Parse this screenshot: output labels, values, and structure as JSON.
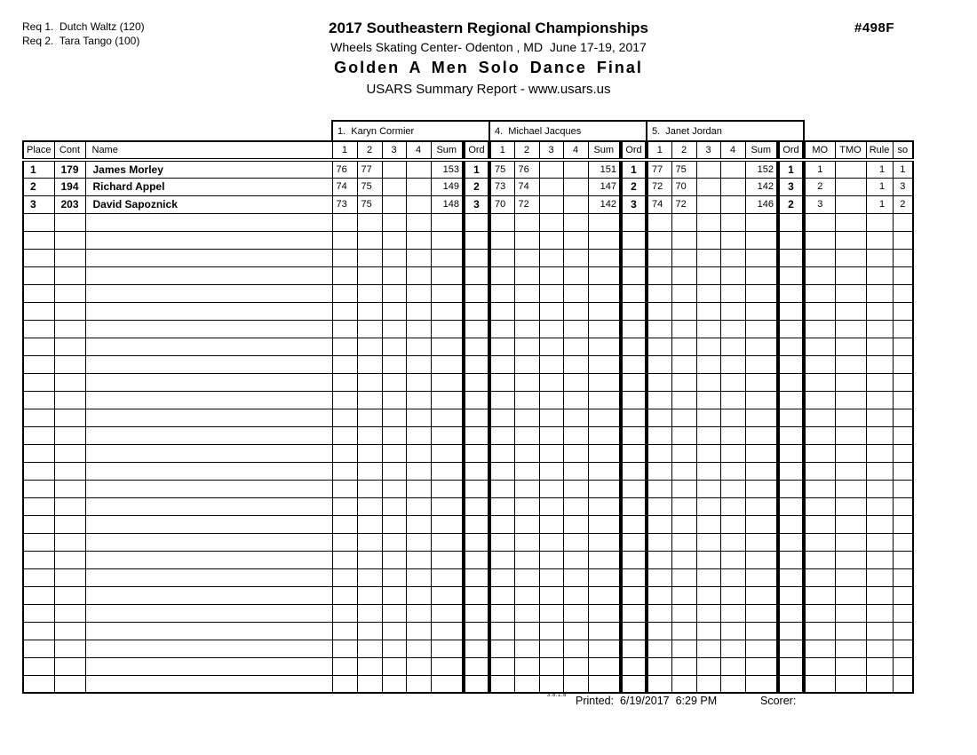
{
  "header": {
    "req_lines": [
      "Req 1.  Dutch Waltz (120)",
      "Req 2.  Tara Tango (100)"
    ],
    "title": "2017 Southeastern Regional Championships",
    "venue": "Wheels Skating Center- Odenton , MD  June 17-19, 2017",
    "event_name": "Golden A Men Solo Dance Final",
    "report_type": "USARS Summary Report - www.usars.us",
    "event_number": "#498F"
  },
  "table": {
    "left_headers": [
      "Place",
      "Cont",
      "Name"
    ],
    "judge_sub_headers": [
      "1",
      "2",
      "3",
      "4",
      "Sum",
      "Ord"
    ],
    "right_headers": [
      "MO",
      "TMO",
      "Rule",
      "so"
    ],
    "judges": [
      "1.  Karyn Cormier",
      "4.  Michael Jacques",
      "5.  Janet Jordan"
    ],
    "rows": [
      {
        "place": "1",
        "cont": "179",
        "name": "James Morley",
        "judges": [
          {
            "scores": [
              "76",
              "77",
              "",
              ""
            ],
            "sum": "153",
            "ord": "1"
          },
          {
            "scores": [
              "75",
              "76",
              "",
              ""
            ],
            "sum": "151",
            "ord": "1"
          },
          {
            "scores": [
              "77",
              "75",
              "",
              ""
            ],
            "sum": "152",
            "ord": "1"
          }
        ],
        "mo": "1",
        "tmo": "",
        "rule": "1",
        "so": "1"
      },
      {
        "place": "2",
        "cont": "194",
        "name": "Richard Appel",
        "judges": [
          {
            "scores": [
              "74",
              "75",
              "",
              ""
            ],
            "sum": "149",
            "ord": "2"
          },
          {
            "scores": [
              "73",
              "74",
              "",
              ""
            ],
            "sum": "147",
            "ord": "2"
          },
          {
            "scores": [
              "72",
              "70",
              "",
              ""
            ],
            "sum": "142",
            "ord": "3"
          }
        ],
        "mo": "2",
        "tmo": "",
        "rule": "1",
        "so": "3"
      },
      {
        "place": "3",
        "cont": "203",
        "name": "David Sapoznick",
        "judges": [
          {
            "scores": [
              "73",
              "75",
              "",
              ""
            ],
            "sum": "148",
            "ord": "3"
          },
          {
            "scores": [
              "70",
              "72",
              "",
              ""
            ],
            "sum": "142",
            "ord": "3"
          },
          {
            "scores": [
              "74",
              "72",
              "",
              ""
            ],
            "sum": "146",
            "ord": "2"
          }
        ],
        "mo": "3",
        "tmo": "",
        "rule": "1",
        "so": "2"
      }
    ],
    "empty_rows": 27
  },
  "footer": {
    "version": "3.8.1.8",
    "printed": "Printed:  6/19/2017  6:29 PM",
    "scorer": "Scorer:"
  },
  "colors": {
    "ink": "#000000",
    "paper": "#ffffff"
  }
}
